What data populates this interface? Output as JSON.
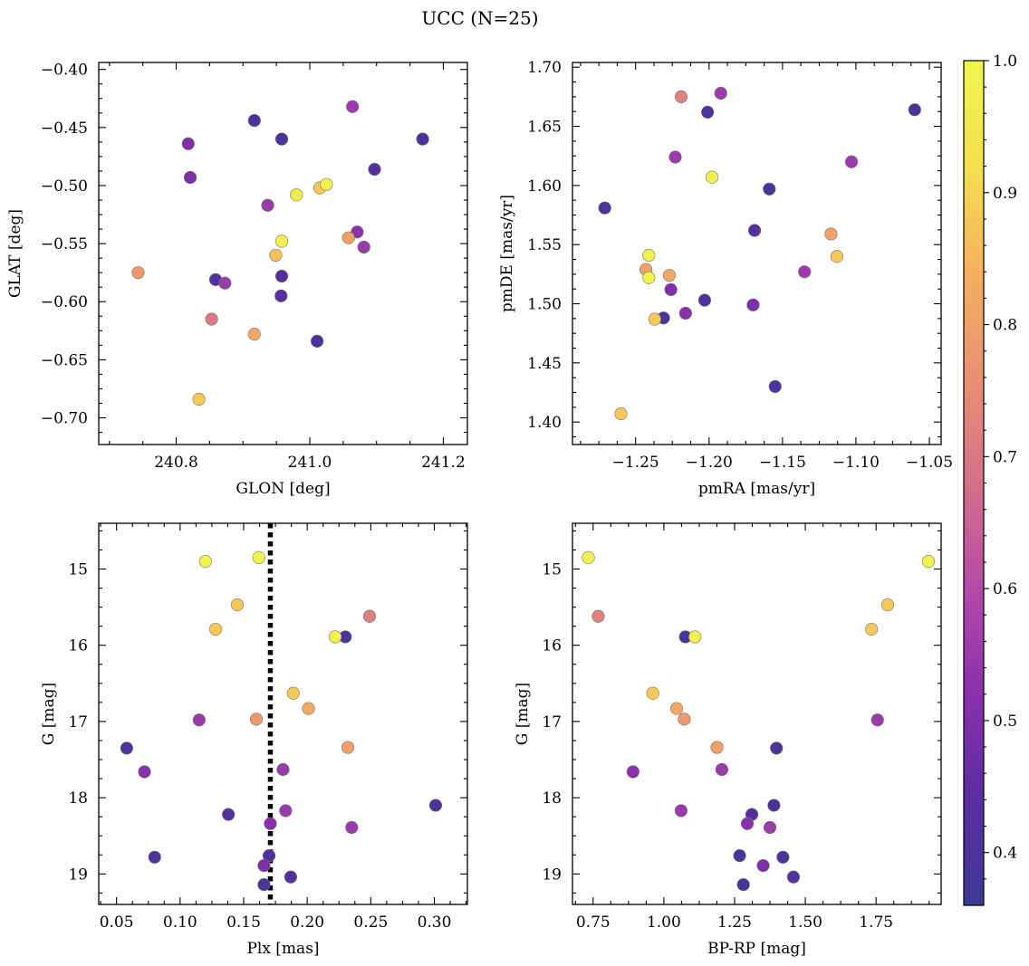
{
  "figure": {
    "title": "UCC (N=25)",
    "colorbar": {
      "range": [
        0.36,
        1.0
      ],
      "ticks": [
        0.4,
        0.5,
        0.6,
        0.7,
        0.8,
        0.9,
        1.0
      ],
      "colormap": "plasma",
      "color_stops": [
        "#3d3895",
        "#5b2da0",
        "#8a30ad",
        "#b64aa8",
        "#d5708a",
        "#ea9072",
        "#f6b05e",
        "#f3e04f",
        "#f0f54e"
      ]
    }
  },
  "chart_data": [
    {
      "type": "scatter",
      "xlabel": "GLON [deg]",
      "ylabel": "GLAT [deg]",
      "xlim": [
        240.684,
        241.236
      ],
      "ylim": [
        -0.723,
        -0.394
      ],
      "y_inverted": false,
      "xticks": [
        240.8,
        241.0,
        241.2
      ],
      "xtick_labels": [
        "240.8",
        "241.0",
        "241.2"
      ],
      "yticks": [
        -0.7,
        -0.65,
        -0.6,
        -0.55,
        -0.5,
        -0.45,
        -0.4
      ],
      "ytick_labels": [
        "−0.70",
        "−0.65",
        "−0.60",
        "−0.55",
        "−0.50",
        "−0.45",
        "−0.40"
      ],
      "points": [
        {
          "x": 240.818,
          "y": -0.464,
          "c": 0.5
        },
        {
          "x": 240.917,
          "y": -0.444,
          "c": 0.4
        },
        {
          "x": 240.958,
          "y": -0.46,
          "c": 0.4
        },
        {
          "x": 241.064,
          "y": -0.432,
          "c": 0.55
        },
        {
          "x": 241.169,
          "y": -0.46,
          "c": 0.4
        },
        {
          "x": 240.821,
          "y": -0.493,
          "c": 0.5
        },
        {
          "x": 241.097,
          "y": -0.486,
          "c": 0.42
        },
        {
          "x": 240.98,
          "y": -0.508,
          "c": 0.97
        },
        {
          "x": 241.015,
          "y": -0.502,
          "c": 0.88
        },
        {
          "x": 241.025,
          "y": -0.499,
          "c": 0.99
        },
        {
          "x": 240.937,
          "y": -0.517,
          "c": 0.55
        },
        {
          "x": 240.958,
          "y": -0.548,
          "c": 0.98
        },
        {
          "x": 241.058,
          "y": -0.545,
          "c": 0.8
        },
        {
          "x": 241.071,
          "y": -0.54,
          "c": 0.52
        },
        {
          "x": 241.081,
          "y": -0.553,
          "c": 0.55
        },
        {
          "x": 240.743,
          "y": -0.575,
          "c": 0.78
        },
        {
          "x": 240.949,
          "y": -0.56,
          "c": 0.87
        },
        {
          "x": 240.859,
          "y": -0.581,
          "c": 0.4
        },
        {
          "x": 240.873,
          "y": -0.584,
          "c": 0.55
        },
        {
          "x": 240.958,
          "y": -0.578,
          "c": 0.42
        },
        {
          "x": 240.957,
          "y": -0.595,
          "c": 0.42
        },
        {
          "x": 240.853,
          "y": -0.615,
          "c": 0.7
        },
        {
          "x": 240.917,
          "y": -0.628,
          "c": 0.82
        },
        {
          "x": 241.011,
          "y": -0.634,
          "c": 0.4
        },
        {
          "x": 240.834,
          "y": -0.684,
          "c": 0.88
        }
      ]
    },
    {
      "type": "scatter",
      "xlabel": "pmRA [mas/yr]",
      "ylabel": "pmDE [mas/yr]",
      "xlim": [
        -1.293,
        -1.042
      ],
      "ylim": [
        1.381,
        1.704
      ],
      "y_inverted": false,
      "xticks": [
        -1.25,
        -1.2,
        -1.15,
        -1.1,
        -1.05
      ],
      "xtick_labels": [
        "−1.25",
        "−1.20",
        "−1.15",
        "−1.10",
        "−1.05"
      ],
      "yticks": [
        1.4,
        1.45,
        1.5,
        1.55,
        1.6,
        1.65,
        1.7
      ],
      "ytick_labels": [
        "1.40",
        "1.45",
        "1.50",
        "1.55",
        "1.60",
        "1.65",
        "1.70"
      ],
      "points": [
        {
          "x": -1.219,
          "y": 1.675,
          "c": 0.72
        },
        {
          "x": -1.192,
          "y": 1.678,
          "c": 0.55
        },
        {
          "x": -1.201,
          "y": 1.662,
          "c": 0.4
        },
        {
          "x": -1.06,
          "y": 1.664,
          "c": 0.4
        },
        {
          "x": -1.223,
          "y": 1.624,
          "c": 0.55
        },
        {
          "x": -1.103,
          "y": 1.62,
          "c": 0.55
        },
        {
          "x": -1.198,
          "y": 1.607,
          "c": 0.98
        },
        {
          "x": -1.159,
          "y": 1.597,
          "c": 0.4
        },
        {
          "x": -1.271,
          "y": 1.581,
          "c": 0.4
        },
        {
          "x": -1.169,
          "y": 1.562,
          "c": 0.42
        },
        {
          "x": -1.117,
          "y": 1.559,
          "c": 0.8
        },
        {
          "x": -1.241,
          "y": 1.541,
          "c": 0.98
        },
        {
          "x": -1.113,
          "y": 1.54,
          "c": 0.88
        },
        {
          "x": -1.243,
          "y": 1.529,
          "c": 0.8
        },
        {
          "x": -1.135,
          "y": 1.527,
          "c": 0.55
        },
        {
          "x": -1.227,
          "y": 1.524,
          "c": 0.82
        },
        {
          "x": -1.241,
          "y": 1.522,
          "c": 0.98
        },
        {
          "x": -1.226,
          "y": 1.512,
          "c": 0.5
        },
        {
          "x": -1.203,
          "y": 1.503,
          "c": 0.4
        },
        {
          "x": -1.17,
          "y": 1.499,
          "c": 0.5
        },
        {
          "x": -1.216,
          "y": 1.492,
          "c": 0.52
        },
        {
          "x": -1.231,
          "y": 1.488,
          "c": 0.4
        },
        {
          "x": -1.237,
          "y": 1.487,
          "c": 0.88
        },
        {
          "x": -1.155,
          "y": 1.43,
          "c": 0.4
        },
        {
          "x": -1.26,
          "y": 1.407,
          "c": 0.88
        }
      ]
    },
    {
      "type": "scatter",
      "xlabel": "Plx [mas]",
      "ylabel": "G [mag]",
      "xlim": [
        0.036,
        0.326
      ],
      "ylim": [
        19.4,
        14.4
      ],
      "y_inverted": true,
      "xticks": [
        0.05,
        0.1,
        0.15,
        0.2,
        0.25,
        0.3
      ],
      "xtick_labels": [
        "0.05",
        "0.10",
        "0.15",
        "0.20",
        "0.25",
        "0.30"
      ],
      "yticks": [
        15,
        16,
        17,
        18,
        19
      ],
      "ytick_labels": [
        "15",
        "16",
        "17",
        "18",
        "19"
      ],
      "vline": {
        "x": 0.171,
        "style": "dotted",
        "color": "#000000"
      },
      "points": [
        {
          "x": 0.162,
          "y": 14.85,
          "c": 0.99
        },
        {
          "x": 0.12,
          "y": 14.9,
          "c": 0.99
        },
        {
          "x": 0.145,
          "y": 15.47,
          "c": 0.88
        },
        {
          "x": 0.249,
          "y": 15.62,
          "c": 0.72
        },
        {
          "x": 0.128,
          "y": 15.79,
          "c": 0.88
        },
        {
          "x": 0.222,
          "y": 15.89,
          "c": 0.99
        },
        {
          "x": 0.23,
          "y": 15.89,
          "c": 0.4
        },
        {
          "x": 0.189,
          "y": 16.63,
          "c": 0.88
        },
        {
          "x": 0.201,
          "y": 16.83,
          "c": 0.82
        },
        {
          "x": 0.115,
          "y": 16.98,
          "c": 0.55
        },
        {
          "x": 0.16,
          "y": 16.97,
          "c": 0.78
        },
        {
          "x": 0.232,
          "y": 17.34,
          "c": 0.8
        },
        {
          "x": 0.058,
          "y": 17.35,
          "c": 0.4
        },
        {
          "x": 0.072,
          "y": 17.66,
          "c": 0.52
        },
        {
          "x": 0.181,
          "y": 17.63,
          "c": 0.55
        },
        {
          "x": 0.183,
          "y": 18.17,
          "c": 0.55
        },
        {
          "x": 0.301,
          "y": 18.1,
          "c": 0.4
        },
        {
          "x": 0.138,
          "y": 18.22,
          "c": 0.42
        },
        {
          "x": 0.171,
          "y": 18.34,
          "c": 0.52
        },
        {
          "x": 0.235,
          "y": 18.39,
          "c": 0.55
        },
        {
          "x": 0.08,
          "y": 18.78,
          "c": 0.4
        },
        {
          "x": 0.17,
          "y": 18.76,
          "c": 0.4
        },
        {
          "x": 0.166,
          "y": 18.89,
          "c": 0.5
        },
        {
          "x": 0.187,
          "y": 19.04,
          "c": 0.42
        },
        {
          "x": 0.166,
          "y": 19.14,
          "c": 0.4
        }
      ]
    },
    {
      "type": "scatter",
      "xlabel": "BP-RP [mag]",
      "ylabel": "G [mag]",
      "xlim": [
        0.677,
        1.98
      ],
      "ylim": [
        19.4,
        14.4
      ],
      "y_inverted": true,
      "xticks": [
        0.75,
        1.0,
        1.25,
        1.5,
        1.75
      ],
      "xtick_labels": [
        "0.75",
        "1.00",
        "1.25",
        "1.50",
        "1.75"
      ],
      "yticks": [
        15,
        16,
        17,
        18,
        19
      ],
      "ytick_labels": [
        "15",
        "16",
        "17",
        "18",
        "19"
      ],
      "points": [
        {
          "x": 0.733,
          "y": 14.85,
          "c": 0.99
        },
        {
          "x": 1.935,
          "y": 14.9,
          "c": 0.99
        },
        {
          "x": 1.791,
          "y": 15.47,
          "c": 0.88
        },
        {
          "x": 0.768,
          "y": 15.62,
          "c": 0.72
        },
        {
          "x": 1.734,
          "y": 15.79,
          "c": 0.88
        },
        {
          "x": 1.076,
          "y": 15.89,
          "c": 0.4
        },
        {
          "x": 1.11,
          "y": 15.89,
          "c": 0.99
        },
        {
          "x": 0.961,
          "y": 16.63,
          "c": 0.88
        },
        {
          "x": 1.045,
          "y": 16.83,
          "c": 0.82
        },
        {
          "x": 1.072,
          "y": 16.97,
          "c": 0.78
        },
        {
          "x": 1.755,
          "y": 16.98,
          "c": 0.55
        },
        {
          "x": 1.188,
          "y": 17.34,
          "c": 0.8
        },
        {
          "x": 1.398,
          "y": 17.35,
          "c": 0.4
        },
        {
          "x": 0.891,
          "y": 17.66,
          "c": 0.52
        },
        {
          "x": 1.205,
          "y": 17.63,
          "c": 0.55
        },
        {
          "x": 1.389,
          "y": 18.1,
          "c": 0.4
        },
        {
          "x": 1.061,
          "y": 18.17,
          "c": 0.55
        },
        {
          "x": 1.311,
          "y": 18.22,
          "c": 0.42
        },
        {
          "x": 1.295,
          "y": 18.34,
          "c": 0.52
        },
        {
          "x": 1.375,
          "y": 18.39,
          "c": 0.55
        },
        {
          "x": 1.268,
          "y": 18.76,
          "c": 0.4
        },
        {
          "x": 1.421,
          "y": 18.78,
          "c": 0.4
        },
        {
          "x": 1.351,
          "y": 18.89,
          "c": 0.5
        },
        {
          "x": 1.458,
          "y": 19.04,
          "c": 0.42
        },
        {
          "x": 1.281,
          "y": 19.14,
          "c": 0.4
        }
      ]
    }
  ]
}
